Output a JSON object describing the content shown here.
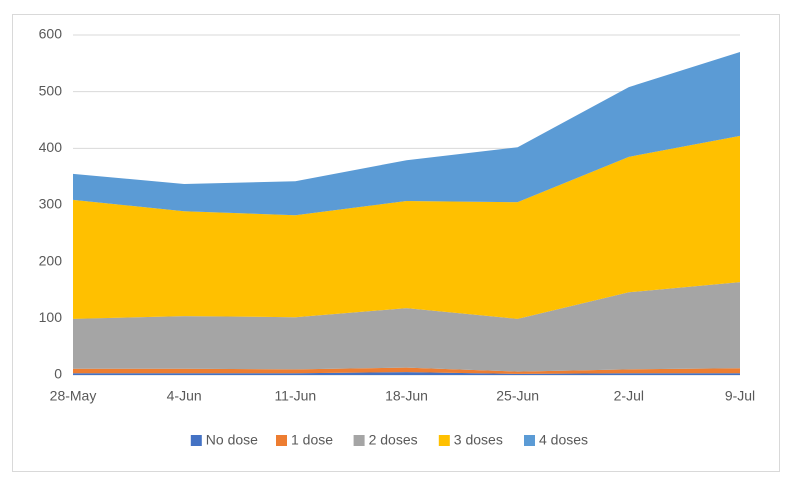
{
  "chart_data": {
    "type": "stacked-area",
    "categories": [
      "28-May",
      "4-Jun",
      "11-Jun",
      "18-Jun",
      "25-Jun",
      "2-Jul",
      "9-Jul"
    ],
    "series": [
      {
        "name": "No dose",
        "color": "#4472c4",
        "values": [
          3,
          3,
          3,
          5,
          2,
          3,
          3
        ]
      },
      {
        "name": "1 dose",
        "color": "#ed7d31",
        "values": [
          8,
          8,
          7,
          8,
          4,
          7,
          9
        ]
      },
      {
        "name": "2 doses",
        "color": "#a5a5a5",
        "values": [
          88,
          93,
          92,
          105,
          93,
          136,
          152
        ]
      },
      {
        "name": "3 doses",
        "color": "#ffc000",
        "values": [
          210,
          185,
          180,
          189,
          206,
          239,
          258
        ]
      },
      {
        "name": "4 doses",
        "color": "#5b9bd5",
        "values": [
          46,
          48,
          60,
          72,
          97,
          123,
          148
        ]
      }
    ],
    "ylim": [
      0,
      600
    ],
    "yticks": [
      0,
      100,
      200,
      300,
      400,
      500,
      600
    ],
    "grid": true,
    "legend": "bottom"
  }
}
